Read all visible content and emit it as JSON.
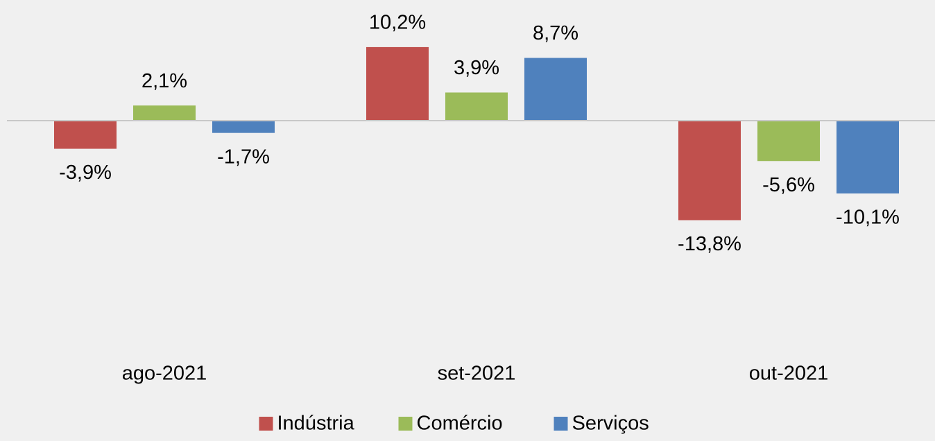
{
  "chart_data": {
    "type": "bar",
    "categories": [
      "ago-2021",
      "set-2021",
      "out-2021"
    ],
    "series": [
      {
        "name": "Indústria",
        "color": "#c0504d",
        "values": [
          -3.9,
          10.2,
          -13.8
        ],
        "value_labels": [
          "-3,9%",
          "10,2%",
          "-13,8%"
        ]
      },
      {
        "name": "Comércio",
        "color": "#9bbb59",
        "values": [
          2.1,
          3.9,
          -5.6
        ],
        "value_labels": [
          "2,1%",
          "3,9%",
          "-5,6%"
        ]
      },
      {
        "name": "Serviços",
        "color": "#4f81bd",
        "values": [
          -1.7,
          8.7,
          -10.1
        ],
        "value_labels": [
          "-1,7%",
          "8,7%",
          "-10,1%"
        ]
      }
    ],
    "legend": "bottom"
  }
}
